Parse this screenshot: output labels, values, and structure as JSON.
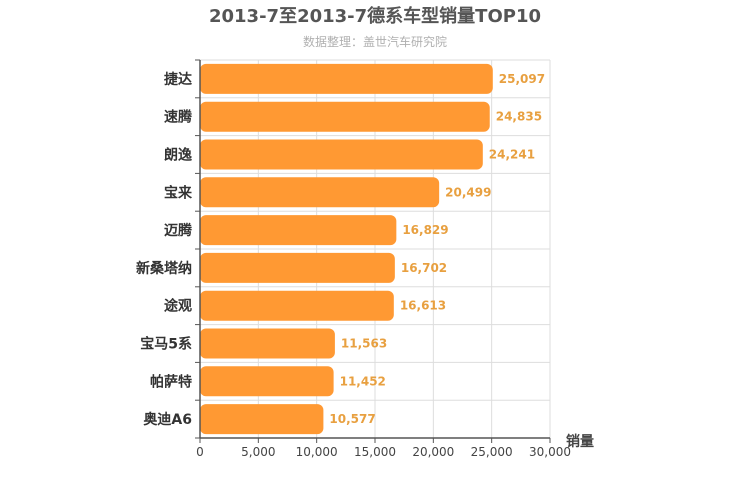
{
  "chart_data": {
    "type": "bar",
    "orientation": "horizontal",
    "title": "2013-7至2013-7德系车型销量TOP10",
    "subtitle": "数据整理：盖世汽车研究院",
    "xlabel": "销量",
    "ylabel": "",
    "xlim": [
      0,
      30000
    ],
    "xticks": [
      "0",
      "5,000",
      "10,000",
      "15,000",
      "20,000",
      "25,000",
      "30,000"
    ],
    "grid": true,
    "categories": [
      "捷达",
      "速腾",
      "朗逸",
      "宝来",
      "迈腾",
      "新桑塔纳",
      "途观",
      "宝马5系",
      "帕萨特",
      "奥迪A6"
    ],
    "values": [
      25097,
      24835,
      24241,
      20499,
      16829,
      16702,
      16613,
      11563,
      11452,
      10577
    ],
    "value_labels": [
      "25,097",
      "24,835",
      "24,241",
      "20,499",
      "16,829",
      "16,702",
      "16,613",
      "11,563",
      "11,452",
      "10,577"
    ],
    "colors": {
      "bar": "#ff9933",
      "label": "#e8a040",
      "title": "#555555",
      "subtitle": "#b0b0b0",
      "grid": "#dddddd",
      "axis": "#555555"
    }
  }
}
